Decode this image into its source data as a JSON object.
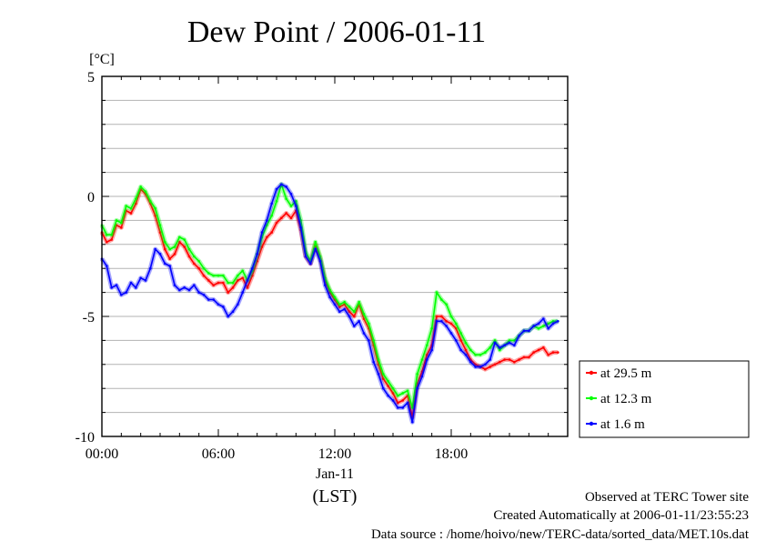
{
  "chart_data": {
    "type": "line",
    "title": "Dew Point / 2006-01-11",
    "ylabel": "[°C]",
    "xlabel": "(LST)",
    "date_label": "Jan-11",
    "ylim": [
      -10,
      5
    ],
    "xlim_hours": [
      0,
      24
    ],
    "grid": "horizontal",
    "legend_position": "right",
    "yticks": [
      {
        "value": 5,
        "label": "5"
      },
      {
        "value": 0,
        "label": "0"
      },
      {
        "value": -5,
        "label": "-5"
      },
      {
        "value": -10,
        "label": "-10"
      }
    ],
    "xticks": [
      {
        "value": 0,
        "label": "00:00"
      },
      {
        "value": 6,
        "label": "06:00"
      },
      {
        "value": 12,
        "label": "12:00"
      },
      {
        "value": 18,
        "label": "18:00"
      }
    ],
    "series": [
      {
        "name": "at 29.5 m",
        "color": "#ff0000",
        "x": [
          0,
          0.25,
          0.5,
          0.75,
          1,
          1.25,
          1.5,
          1.75,
          2,
          2.25,
          2.5,
          2.75,
          3,
          3.25,
          3.5,
          3.75,
          4,
          4.25,
          4.5,
          4.75,
          5,
          5.25,
          5.5,
          5.75,
          6,
          6.25,
          6.5,
          6.75,
          7,
          7.25,
          7.5,
          7.75,
          8,
          8.25,
          8.5,
          8.75,
          9,
          9.25,
          9.5,
          9.75,
          10,
          10.25,
          10.5,
          10.75,
          11,
          11.25,
          11.5,
          11.75,
          12,
          12.25,
          12.5,
          12.75,
          13,
          13.25,
          13.5,
          13.75,
          14,
          14.25,
          14.5,
          14.75,
          15,
          15.25,
          15.5,
          15.75,
          16,
          16.25,
          16.5,
          16.75,
          17,
          17.25,
          17.5,
          17.75,
          18,
          18.25,
          18.5,
          18.75,
          19,
          19.25,
          19.5,
          19.75,
          20,
          20.25,
          20.5,
          20.75,
          21,
          21.25,
          21.5,
          21.75,
          22,
          22.25,
          22.5,
          22.75,
          23,
          23.25,
          23.5
        ],
        "values": [
          -1.5,
          -1.9,
          -1.8,
          -1.2,
          -1.3,
          -0.6,
          -0.7,
          -0.3,
          0.3,
          0.1,
          -0.3,
          -0.8,
          -1.5,
          -2.2,
          -2.6,
          -2.4,
          -1.9,
          -2.1,
          -2.5,
          -2.8,
          -3.0,
          -3.3,
          -3.5,
          -3.7,
          -3.6,
          -3.6,
          -4.0,
          -3.8,
          -3.5,
          -3.4,
          -3.8,
          -3.3,
          -2.7,
          -2.1,
          -1.7,
          -1.5,
          -1.1,
          -0.9,
          -0.7,
          -0.9,
          -0.6,
          -1.4,
          -2.5,
          -2.8,
          -2.0,
          -2.6,
          -3.5,
          -4.0,
          -4.3,
          -4.6,
          -4.5,
          -4.8,
          -5.0,
          -4.5,
          -5.1,
          -5.5,
          -6.2,
          -7.0,
          -7.6,
          -7.9,
          -8.2,
          -8.6,
          -8.5,
          -8.3,
          -9.2,
          -7.8,
          -7.3,
          -6.6,
          -6.2,
          -5.0,
          -5.0,
          -5.2,
          -5.3,
          -5.5,
          -6.0,
          -6.4,
          -6.8,
          -7.0,
          -7.1,
          -7.2,
          -7.1,
          -7.0,
          -6.9,
          -6.8,
          -6.8,
          -6.9,
          -6.8,
          -6.7,
          -6.7,
          -6.5,
          -6.4,
          -6.3,
          -6.6,
          -6.5,
          -6.5
        ]
      },
      {
        "name": "at 12.3 m",
        "color": "#00ff00",
        "x": [
          0,
          0.25,
          0.5,
          0.75,
          1,
          1.25,
          1.5,
          1.75,
          2,
          2.25,
          2.5,
          2.75,
          3,
          3.25,
          3.5,
          3.75,
          4,
          4.25,
          4.5,
          4.75,
          5,
          5.25,
          5.5,
          5.75,
          6,
          6.25,
          6.5,
          6.75,
          7,
          7.25,
          7.5,
          7.75,
          8,
          8.25,
          8.5,
          8.75,
          9,
          9.25,
          9.5,
          9.75,
          10,
          10.25,
          10.5,
          10.75,
          11,
          11.25,
          11.5,
          11.75,
          12,
          12.25,
          12.5,
          12.75,
          13,
          13.25,
          13.5,
          13.75,
          14,
          14.25,
          14.5,
          14.75,
          15,
          15.25,
          15.5,
          15.75,
          16,
          16.25,
          16.5,
          16.75,
          17,
          17.25,
          17.5,
          17.75,
          18,
          18.25,
          18.5,
          18.75,
          19,
          19.25,
          19.5,
          19.75,
          20,
          20.25,
          20.5,
          20.75,
          21,
          21.25,
          21.5,
          21.75,
          22,
          22.25,
          22.5,
          22.75,
          23,
          23.25,
          23.5
        ],
        "values": [
          -1.2,
          -1.6,
          -1.6,
          -1.0,
          -1.1,
          -0.4,
          -0.5,
          -0.1,
          0.4,
          0.2,
          -0.2,
          -0.5,
          -1.2,
          -1.9,
          -2.2,
          -2.1,
          -1.7,
          -1.8,
          -2.2,
          -2.5,
          -2.7,
          -3.0,
          -3.2,
          -3.3,
          -3.3,
          -3.3,
          -3.6,
          -3.6,
          -3.3,
          -3.1,
          -3.5,
          -3.1,
          -2.4,
          -1.7,
          -1.2,
          -0.8,
          -0.2,
          0.5,
          -0.1,
          -0.4,
          -0.2,
          -1.0,
          -2.3,
          -2.7,
          -1.9,
          -2.5,
          -3.4,
          -3.9,
          -4.2,
          -4.5,
          -4.4,
          -4.6,
          -4.8,
          -4.4,
          -4.9,
          -5.3,
          -6.0,
          -6.8,
          -7.4,
          -7.7,
          -8.0,
          -8.3,
          -8.2,
          -8.1,
          -8.8,
          -7.4,
          -6.8,
          -6.2,
          -5.5,
          -4.0,
          -4.3,
          -4.5,
          -5.0,
          -5.3,
          -5.7,
          -6.1,
          -6.4,
          -6.6,
          -6.6,
          -6.5,
          -6.3,
          -6.0,
          -6.4,
          -6.2,
          -6.0,
          -6.0,
          -5.8,
          -5.6,
          -5.6,
          -5.4,
          -5.5,
          -5.4,
          -5.3,
          -5.2,
          -5.2
        ]
      },
      {
        "name": "at 1.6 m",
        "color": "#0000ff",
        "x": [
          0,
          0.25,
          0.5,
          0.75,
          1,
          1.25,
          1.5,
          1.75,
          2,
          2.25,
          2.5,
          2.75,
          3,
          3.25,
          3.5,
          3.75,
          4,
          4.25,
          4.5,
          4.75,
          5,
          5.25,
          5.5,
          5.75,
          6,
          6.25,
          6.5,
          6.75,
          7,
          7.25,
          7.5,
          7.75,
          8,
          8.25,
          8.5,
          8.75,
          9,
          9.25,
          9.5,
          9.75,
          10,
          10.25,
          10.5,
          10.75,
          11,
          11.25,
          11.5,
          11.75,
          12,
          12.25,
          12.5,
          12.75,
          13,
          13.25,
          13.5,
          13.75,
          14,
          14.25,
          14.5,
          14.75,
          15,
          15.25,
          15.5,
          15.75,
          16,
          16.25,
          16.5,
          16.75,
          17,
          17.25,
          17.5,
          17.75,
          18,
          18.25,
          18.5,
          18.75,
          19,
          19.25,
          19.5,
          19.75,
          20,
          20.25,
          20.5,
          20.75,
          21,
          21.25,
          21.5,
          21.75,
          22,
          22.25,
          22.5,
          22.75,
          23,
          23.25,
          23.5
        ],
        "values": [
          -2.6,
          -2.9,
          -3.8,
          -3.7,
          -4.1,
          -4.0,
          -3.6,
          -3.8,
          -3.4,
          -3.5,
          -3.0,
          -2.2,
          -2.4,
          -2.8,
          -2.9,
          -3.7,
          -3.9,
          -3.8,
          -3.9,
          -3.7,
          -4.0,
          -4.1,
          -4.3,
          -4.3,
          -4.5,
          -4.6,
          -5.0,
          -4.8,
          -4.5,
          -4.0,
          -3.5,
          -3.0,
          -2.4,
          -1.5,
          -1.0,
          -0.3,
          0.3,
          0.5,
          0.4,
          0.1,
          -0.4,
          -1.3,
          -2.5,
          -2.8,
          -2.2,
          -2.7,
          -3.7,
          -4.2,
          -4.5,
          -4.8,
          -4.7,
          -5.0,
          -5.4,
          -5.2,
          -5.7,
          -6.0,
          -6.9,
          -7.4,
          -8.0,
          -8.3,
          -8.5,
          -8.8,
          -8.8,
          -8.6,
          -9.4,
          -8.0,
          -7.5,
          -6.8,
          -6.4,
          -5.2,
          -5.2,
          -5.4,
          -5.7,
          -6.0,
          -6.4,
          -6.6,
          -6.9,
          -7.1,
          -7.1,
          -7.0,
          -6.8,
          -6.1,
          -6.3,
          -6.2,
          -6.1,
          -6.2,
          -5.8,
          -5.6,
          -5.6,
          -5.4,
          -5.3,
          -5.1,
          -5.5,
          -5.3,
          -5.2
        ]
      }
    ]
  },
  "footer": {
    "site": "Observed at TERC Tower site",
    "created": "Created Automatically at 2006-01-11/23:55:23",
    "source": "Data source : /home/hoivo/new/TERC-data/sorted_data/MET.10s.dat"
  }
}
